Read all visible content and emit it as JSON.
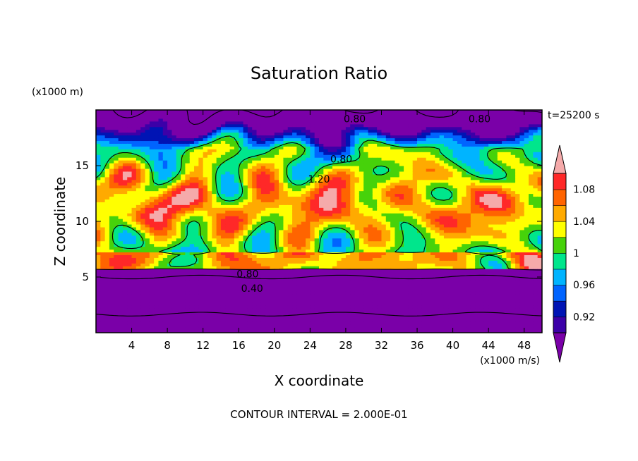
{
  "chart_data": {
    "type": "heatmap",
    "title": "Saturation Ratio",
    "xlabel": "X coordinate",
    "ylabel": "Z coordinate",
    "x_unit": "(x1000 m/s)",
    "y_unit": "(x1000 m)",
    "time_label": "t=25200 s",
    "footer": "CONTOUR INTERVAL = 2.000E-01",
    "xlim": [
      0,
      50
    ],
    "ylim": [
      0,
      20
    ],
    "x_ticks": [
      "4",
      "8",
      "12",
      "16",
      "20",
      "24",
      "28",
      "32",
      "36",
      "40",
      "44",
      "48"
    ],
    "y_ticks": [
      "5",
      "10",
      "15"
    ],
    "colorbar": {
      "levels": [
        0.9,
        0.92,
        0.94,
        0.96,
        0.98,
        1.0,
        1.02,
        1.04,
        1.06,
        1.08,
        1.1
      ],
      "labels": [
        "0.92",
        "0.96",
        "1",
        "1.04",
        "1.08"
      ],
      "colors": [
        "#7a00a8",
        "#3c00a8",
        "#0014b4",
        "#0064ff",
        "#00b4ff",
        "#00e68c",
        "#46d20a",
        "#ffff00",
        "#ffaa00",
        "#ff6400",
        "#ff2828",
        "#f5aaaa"
      ]
    },
    "contour_labels": [
      {
        "text": "0.80",
        "x": 29,
        "z": 19.2
      },
      {
        "text": "0.80",
        "x": 43,
        "z": 19.2
      },
      {
        "text": "0.80",
        "x": 27.5,
        "z": 15.6
      },
      {
        "text": "1.20",
        "x": 25,
        "z": 13.8
      },
      {
        "text": "0.80",
        "x": 17,
        "z": 5.3
      },
      {
        "text": "0.40",
        "x": 17.5,
        "z": 4.0
      }
    ]
  }
}
